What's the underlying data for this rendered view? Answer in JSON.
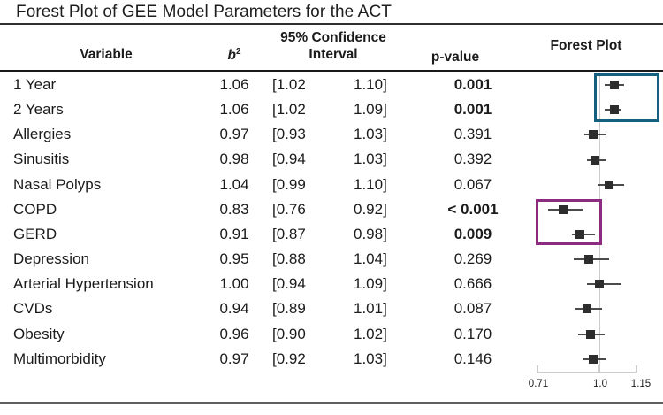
{
  "title": "Forest Plot of GEE Model Parameters for the ACT",
  "header": {
    "variable": "Variable",
    "b_label": "b",
    "b_sup": "2",
    "ci_line1": "95% Confidence",
    "ci_line2": "Interval",
    "p_value": "p-value",
    "forest_plot": "Forest Plot"
  },
  "chart_data": {
    "type": "forest",
    "title": "Forest Plot of GEE Model Parameters for the ACT",
    "columns": [
      "Variable",
      "b2",
      "95% Confidence Interval",
      "p-value",
      "Forest Plot"
    ],
    "axis": {
      "tick_labels": [
        "0.71",
        "1.0",
        "1.15"
      ],
      "xlim": [
        0.71,
        1.15
      ],
      "reference_value": 1.0
    },
    "rows": [
      {
        "variable": "1 Year",
        "b": 1.06,
        "ci": [
          1.02,
          1.1
        ],
        "p": "0.001",
        "p_bold": true,
        "highlight": "blue"
      },
      {
        "variable": "2 Years",
        "b": 1.06,
        "ci": [
          1.02,
          1.09
        ],
        "p": "0.001",
        "p_bold": true,
        "highlight": "blue"
      },
      {
        "variable": "Allergies",
        "b": 0.97,
        "ci": [
          0.93,
          1.03
        ],
        "p": "0.391",
        "p_bold": false,
        "highlight": null
      },
      {
        "variable": "Sinusitis",
        "b": 0.98,
        "ci": [
          0.94,
          1.03
        ],
        "p": "0.392",
        "p_bold": false,
        "highlight": null
      },
      {
        "variable": "Nasal Polyps",
        "b": 1.04,
        "ci": [
          0.99,
          1.1
        ],
        "p": "0.067",
        "p_bold": false,
        "highlight": null
      },
      {
        "variable": "COPD",
        "b": 0.83,
        "ci": [
          0.76,
          0.92
        ],
        "p": "< 0.001",
        "p_bold": true,
        "highlight": "purple"
      },
      {
        "variable": "GERD",
        "b": 0.91,
        "ci": [
          0.87,
          0.98
        ],
        "p": "0.009",
        "p_bold": true,
        "highlight": "purple"
      },
      {
        "variable": "Depression",
        "b": 0.95,
        "ci": [
          0.88,
          1.04
        ],
        "p": "0.269",
        "p_bold": false,
        "highlight": null
      },
      {
        "variable": "Arterial Hypertension",
        "b": 1.0,
        "ci": [
          0.94,
          1.09
        ],
        "p": "0.666",
        "p_bold": false,
        "highlight": null
      },
      {
        "variable": "CVDs",
        "b": 0.94,
        "ci": [
          0.89,
          1.01
        ],
        "p": "0.087",
        "p_bold": false,
        "highlight": null
      },
      {
        "variable": "Obesity",
        "b": 0.96,
        "ci": [
          0.9,
          1.02
        ],
        "p": "0.170",
        "p_bold": false,
        "highlight": null
      },
      {
        "variable": "Multimorbidity",
        "b": 0.97,
        "ci": [
          0.92,
          1.03
        ],
        "p": "0.146",
        "p_bold": false,
        "highlight": null
      }
    ],
    "highlight_colors": {
      "blue": "#15607e",
      "purple": "#8c2b80"
    },
    "marker_color": "#2d2d2d",
    "whisker_color": "#4b4b4b",
    "axis_color": "#cbcbcb"
  }
}
